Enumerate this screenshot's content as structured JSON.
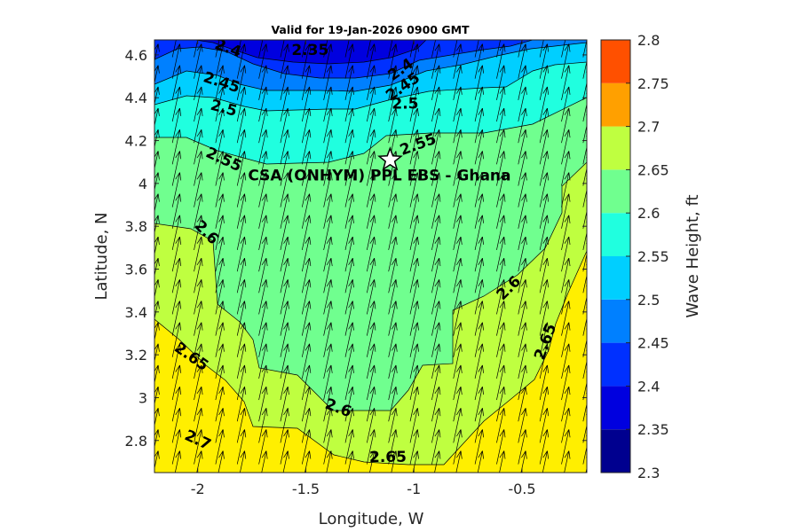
{
  "chart_data": {
    "type": "contourf",
    "title": "Valid for 19-Jan-2026 0900 GMT",
    "xlabel": "Longitude, W",
    "ylabel": "Latitude, N",
    "xlim": [
      -2.2,
      -0.2
    ],
    "ylim": [
      2.65,
      4.67
    ],
    "x_ticks": [
      -2,
      -1.5,
      -1,
      -0.5
    ],
    "x_tick_labels": [
      "-2",
      "-1.5",
      "-1",
      "-0.5"
    ],
    "y_ticks": [
      2.8,
      3.0,
      3.2,
      3.4,
      3.6,
      3.8,
      4.0,
      4.2,
      4.4,
      4.6
    ],
    "y_tick_labels": [
      "2.8",
      "3",
      "3.2",
      "3.4",
      "3.6",
      "3.8",
      "4",
      "4.2",
      "4.4",
      "4.6"
    ],
    "colorbar": {
      "label": "Wave Height, ft",
      "range": [
        2.3,
        2.8
      ],
      "ticks": [
        2.3,
        2.35,
        2.4,
        2.45,
        2.5,
        2.55,
        2.6,
        2.65,
        2.7,
        2.75,
        2.8
      ],
      "tick_labels": [
        "2.3",
        "2.35",
        "2.4",
        "2.45",
        "2.5",
        "2.55",
        "2.6",
        "2.65",
        "2.7",
        "2.75",
        "2.8"
      ],
      "colors": [
        "#00008F",
        "#0000DF",
        "#0030FF",
        "#0080FF",
        "#00CFFF",
        "#20FFDF",
        "#70FF8F",
        "#BFFF40",
        "#FFEF00",
        "#FFA000",
        "#FF5000"
      ]
    },
    "contour_levels": [
      2.35,
      2.4,
      2.45,
      2.5,
      2.55,
      2.6,
      2.65,
      2.7
    ],
    "contour_labels": [
      {
        "text": "2.35",
        "lon": -1.48,
        "lat": 4.62,
        "angle": 0
      },
      {
        "text": "2.4",
        "lon": -1.86,
        "lat": 4.63,
        "angle": 20
      },
      {
        "text": "2.4",
        "lon": -1.06,
        "lat": 4.53,
        "angle": -35
      },
      {
        "text": "2.45",
        "lon": -1.89,
        "lat": 4.47,
        "angle": 18
      },
      {
        "text": "2.45",
        "lon": -1.05,
        "lat": 4.45,
        "angle": -35
      },
      {
        "text": "2.5",
        "lon": -1.88,
        "lat": 4.35,
        "angle": 15
      },
      {
        "text": "2.5",
        "lon": -1.04,
        "lat": 4.37,
        "angle": 0
      },
      {
        "text": "2.55",
        "lon": -0.98,
        "lat": 4.18,
        "angle": -20
      },
      {
        "text": "2.55",
        "lon": -1.88,
        "lat": 4.11,
        "angle": 25
      },
      {
        "text": "2.6",
        "lon": -1.96,
        "lat": 3.77,
        "angle": 45
      },
      {
        "text": "2.6",
        "lon": -0.56,
        "lat": 3.51,
        "angle": -45
      },
      {
        "text": "2.6",
        "lon": -1.35,
        "lat": 2.95,
        "angle": 20
      },
      {
        "text": "2.65",
        "lon": -2.03,
        "lat": 3.19,
        "angle": 35
      },
      {
        "text": "2.65",
        "lon": -0.39,
        "lat": 3.26,
        "angle": -70
      },
      {
        "text": "2.65",
        "lon": -1.12,
        "lat": 2.72,
        "angle": 0
      },
      {
        "text": "2.7",
        "lon": -2.0,
        "lat": 2.8,
        "angle": 25
      }
    ],
    "marker": {
      "label": "CSA (ONHYM) PPL EBS  - Ghana",
      "symbol": "star",
      "lon": -1.11,
      "lat": 4.11
    },
    "wave_direction_arrows": {
      "bearing_from_north_deg": 12,
      "spacing_deg": 0.1
    }
  }
}
